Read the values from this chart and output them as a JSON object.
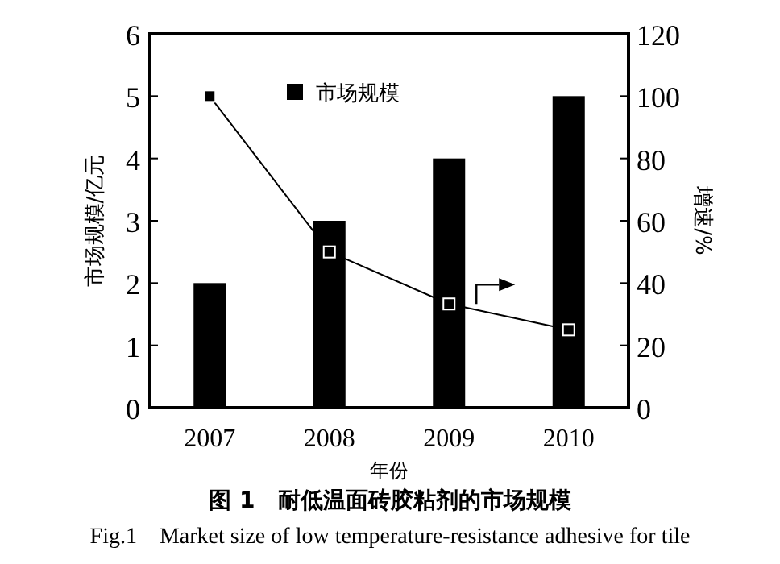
{
  "chart_data": {
    "type": "bar",
    "title": "图 1　耐低温面砖胶粘剂的市场规模",
    "subtitle": "Fig.1　Market size of low temperature-resistance adhesive for tile",
    "xlabel": "年份",
    "ylabel": "市场规模/亿元",
    "y2label": "增速/%",
    "categories": [
      "2007",
      "2008",
      "2009",
      "2010"
    ],
    "series": [
      {
        "name": "市场规模",
        "color": "#000000",
        "values": [
          2,
          3,
          4,
          5
        ]
      },
      {
        "type": "line",
        "axis": "y2",
        "color": "#000000",
        "values": [
          100,
          50,
          33.3,
          25
        ],
        "marker": "square",
        "line_style": "solid"
      }
    ],
    "ylim": [
      0,
      6
    ],
    "yticks": [
      0,
      1,
      2,
      3,
      4,
      5,
      6
    ],
    "y2lim": [
      0,
      120
    ],
    "y2ticks": [
      0,
      20,
      40,
      60,
      80,
      100,
      120
    ],
    "grid": false,
    "legend": "top"
  }
}
